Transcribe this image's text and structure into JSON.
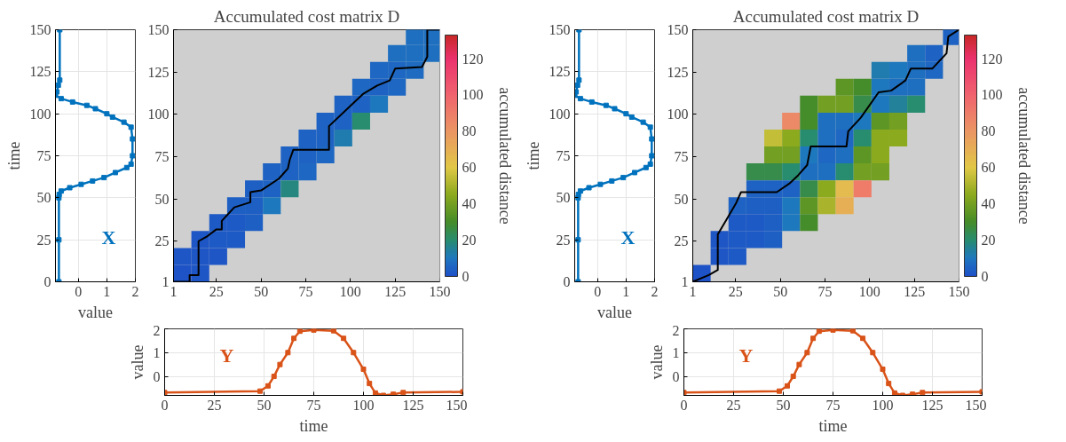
{
  "chart_data": [
    {
      "type": "line",
      "xlabel": "value",
      "ylabel": "time",
      "xlim": [
        -0.8,
        2
      ],
      "xticks": [
        0,
        1,
        2
      ],
      "ylim": [
        0,
        150
      ],
      "yticks": [
        0,
        25,
        50,
        75,
        100,
        125,
        150
      ],
      "grid": true,
      "marker": "square",
      "line_style": "solid",
      "series": [
        {
          "color": "#0072bd",
          "x": [
            -0.68,
            -0.68,
            -0.68,
            -0.67,
            -0.6,
            -0.3,
            0.1,
            0.5,
            0.9,
            1.3,
            1.7,
            1.85,
            1.9,
            1.9,
            1.85,
            1.6,
            1.2,
            1.0,
            0.6,
            0.3,
            -0.2,
            -0.6,
            -0.8,
            -0.75,
            -0.7,
            -0.65,
            -0.65
          ],
          "values": [
            0,
            25,
            50,
            52,
            54,
            56,
            58,
            60,
            62,
            65,
            68,
            70,
            75,
            85,
            92,
            95,
            98,
            100,
            103,
            105,
            107,
            109,
            111,
            113,
            117,
            120,
            150
          ]
        }
      ],
      "annotations": [
        "X"
      ]
    },
    {
      "type": "heatmap",
      "title": "Accumulated cost matrix D",
      "clabel": "accumulated distance",
      "clim": [
        0,
        133
      ],
      "cticks": [
        0,
        20,
        40,
        60,
        80,
        100,
        120
      ],
      "xlim": [
        1,
        150
      ],
      "xticks": [
        1,
        25,
        50,
        75,
        100,
        125,
        150
      ],
      "ylim": [
        1,
        150
      ],
      "yticks": [
        1,
        25,
        50,
        75,
        100,
        125,
        150
      ],
      "x": [
        6,
        16,
        26,
        36,
        46,
        56,
        66,
        76,
        86,
        96,
        106,
        116,
        126,
        136,
        146
      ],
      "y": [
        146,
        136,
        126,
        116,
        106,
        96,
        86,
        76,
        66,
        56,
        46,
        36,
        26,
        16,
        6
      ],
      "cells": [
        [
          null,
          null,
          null,
          null,
          null,
          null,
          null,
          null,
          null,
          null,
          null,
          null,
          null,
          8,
          8
        ],
        [
          null,
          null,
          null,
          null,
          null,
          null,
          null,
          null,
          null,
          null,
          null,
          null,
          8,
          8,
          8
        ],
        [
          null,
          null,
          null,
          null,
          null,
          null,
          null,
          null,
          null,
          null,
          null,
          6,
          6,
          7,
          null
        ],
        [
          null,
          null,
          null,
          null,
          null,
          null,
          null,
          null,
          null,
          null,
          6,
          5,
          6,
          null,
          null
        ],
        [
          null,
          null,
          null,
          null,
          null,
          null,
          null,
          null,
          null,
          5,
          5,
          10,
          null,
          null,
          null
        ],
        [
          null,
          null,
          null,
          null,
          null,
          null,
          null,
          null,
          5,
          5,
          20,
          null,
          null,
          null,
          null
        ],
        [
          null,
          null,
          null,
          null,
          null,
          null,
          null,
          5,
          5,
          12,
          null,
          null,
          null,
          null,
          null
        ],
        [
          null,
          null,
          null,
          null,
          null,
          null,
          5,
          5,
          6,
          null,
          null,
          null,
          null,
          null,
          null
        ],
        [
          null,
          null,
          null,
          null,
          null,
          5,
          5,
          6,
          null,
          null,
          null,
          null,
          null,
          null,
          null
        ],
        [
          null,
          null,
          null,
          null,
          4,
          5,
          18,
          null,
          null,
          null,
          null,
          null,
          null,
          null,
          null
        ],
        [
          null,
          null,
          null,
          4,
          4,
          10,
          null,
          null,
          null,
          null,
          null,
          null,
          null,
          null,
          null
        ],
        [
          null,
          null,
          3,
          3,
          4,
          null,
          null,
          null,
          null,
          null,
          null,
          null,
          null,
          null,
          null
        ],
        [
          null,
          2,
          3,
          3,
          null,
          null,
          null,
          null,
          null,
          null,
          null,
          null,
          null,
          null,
          null
        ],
        [
          2,
          2,
          2,
          null,
          null,
          null,
          null,
          null,
          null,
          null,
          null,
          null,
          null,
          null,
          null
        ],
        [
          1,
          2,
          null,
          null,
          null,
          null,
          null,
          null,
          null,
          null,
          null,
          null,
          null,
          null,
          null
        ]
      ],
      "series": [
        {
          "type": "line",
          "color": "#000000",
          "x": [
            1,
            10,
            10,
            15,
            15,
            20,
            25,
            28,
            28,
            35,
            44,
            44,
            50,
            60,
            65,
            66,
            68,
            88,
            88,
            100,
            107,
            115,
            122,
            125,
            140,
            143,
            143,
            150
          ],
          "values": [
            1,
            1,
            5,
            5,
            25,
            28,
            32,
            32,
            37,
            45,
            48,
            54,
            55,
            62,
            68,
            73,
            79,
            79,
            93,
            105,
            112,
            117,
            120,
            127,
            128,
            134,
            150,
            150
          ]
        }
      ]
    },
    {
      "type": "line",
      "xlabel": "time",
      "ylabel": "value",
      "xlim": [
        0,
        150
      ],
      "xticks": [
        0,
        25,
        50,
        75,
        100,
        125,
        150
      ],
      "ylim": [
        -0.8,
        2
      ],
      "yticks": [
        0,
        1,
        2
      ],
      "grid": true,
      "marker": "square",
      "line_style": "solid",
      "series": [
        {
          "color": "#d95319",
          "x": [
            0,
            48,
            52,
            55,
            58,
            62,
            65,
            68,
            75,
            85,
            90,
            95,
            100,
            103,
            106,
            110,
            115,
            120,
            150
          ],
          "values": [
            -0.68,
            -0.62,
            -0.4,
            0,
            0.5,
            1.0,
            1.6,
            1.9,
            1.95,
            1.92,
            1.6,
            1.0,
            0.3,
            -0.3,
            -0.7,
            -0.8,
            -0.75,
            -0.68,
            -0.65
          ]
        }
      ],
      "annotations": [
        "Y"
      ]
    },
    {
      "type": "line",
      "xlabel": "value",
      "ylabel": "time",
      "xlim": [
        -0.8,
        2
      ],
      "xticks": [
        0,
        1,
        2
      ],
      "ylim": [
        0,
        150
      ],
      "yticks": [
        0,
        25,
        50,
        75,
        100,
        125,
        150
      ],
      "grid": true,
      "marker": "square",
      "line_style": "solid",
      "series": [
        {
          "color": "#0072bd",
          "x": [
            -0.68,
            -0.68,
            -0.68,
            -0.67,
            -0.6,
            -0.3,
            0.1,
            0.5,
            0.9,
            1.3,
            1.7,
            1.85,
            1.9,
            1.9,
            1.85,
            1.6,
            1.2,
            1.0,
            0.6,
            0.3,
            -0.2,
            -0.6,
            -0.8,
            -0.75,
            -0.7,
            -0.65,
            -0.65
          ],
          "values": [
            0,
            25,
            50,
            52,
            54,
            56,
            58,
            60,
            62,
            65,
            68,
            70,
            75,
            85,
            92,
            95,
            98,
            100,
            103,
            105,
            107,
            109,
            111,
            113,
            117,
            120,
            150
          ]
        }
      ],
      "annotations": [
        "X"
      ]
    },
    {
      "type": "heatmap",
      "title": "Accumulated cost matrix D",
      "clabel": "accumulated distance",
      "clim": [
        0,
        133
      ],
      "cticks": [
        0,
        20,
        40,
        60,
        80,
        100,
        120
      ],
      "xlim": [
        1,
        150
      ],
      "xticks": [
        1,
        25,
        50,
        75,
        100,
        125,
        150
      ],
      "ylim": [
        1,
        150
      ],
      "yticks": [
        1,
        25,
        50,
        75,
        100,
        125,
        150
      ],
      "x": [
        6,
        16,
        26,
        36,
        46,
        56,
        66,
        76,
        86,
        96,
        106,
        116,
        126,
        136,
        146
      ],
      "y": [
        146,
        136,
        126,
        116,
        106,
        96,
        86,
        76,
        66,
        56,
        46,
        36,
        26,
        16,
        6
      ],
      "cells": [
        [
          null,
          null,
          null,
          null,
          null,
          null,
          null,
          null,
          null,
          null,
          null,
          null,
          null,
          null,
          5
        ],
        [
          null,
          null,
          null,
          null,
          null,
          null,
          null,
          null,
          null,
          null,
          null,
          null,
          8,
          5,
          null
        ],
        [
          null,
          null,
          null,
          null,
          null,
          null,
          null,
          null,
          null,
          null,
          12,
          10,
          8,
          6,
          null
        ],
        [
          null,
          null,
          null,
          null,
          null,
          null,
          null,
          null,
          35,
          30,
          10,
          8,
          8,
          null,
          null
        ],
        [
          null,
          null,
          null,
          null,
          null,
          null,
          30,
          40,
          40,
          25,
          10,
          15,
          20,
          null,
          null
        ],
        [
          null,
          null,
          null,
          null,
          null,
          85,
          30,
          8,
          8,
          10,
          35,
          40,
          null,
          null,
          null
        ],
        [
          null,
          null,
          null,
          null,
          55,
          45,
          20,
          8,
          6,
          20,
          45,
          45,
          null,
          null,
          null
        ],
        [
          null,
          null,
          null,
          null,
          40,
          40,
          10,
          6,
          8,
          35,
          45,
          null,
          null,
          null,
          null
        ],
        [
          null,
          null,
          null,
          25,
          25,
          20,
          8,
          8,
          20,
          40,
          40,
          null,
          null,
          null,
          null
        ],
        [
          null,
          null,
          null,
          5,
          5,
          5,
          25,
          45,
          65,
          90,
          null,
          null,
          null,
          null,
          null
        ],
        [
          null,
          null,
          5,
          4,
          4,
          10,
          35,
          50,
          70,
          null,
          null,
          null,
          null,
          null,
          null
        ],
        [
          null,
          null,
          3,
          3,
          4,
          10,
          30,
          null,
          null,
          null,
          null,
          null,
          null,
          null,
          null
        ],
        [
          null,
          2,
          3,
          3,
          4,
          null,
          null,
          null,
          null,
          null,
          null,
          null,
          null,
          null,
          null
        ],
        [
          null,
          2,
          3,
          null,
          null,
          null,
          null,
          null,
          null,
          null,
          null,
          null,
          null,
          null,
          null
        ],
        [
          1,
          null,
          null,
          null,
          null,
          null,
          null,
          null,
          null,
          null,
          null,
          null,
          null,
          null,
          null
        ]
      ],
      "series": [
        {
          "type": "line",
          "color": "#000000",
          "x": [
            1,
            10,
            15,
            15,
            20,
            25,
            28,
            48,
            55,
            60,
            65,
            67,
            87,
            88,
            95,
            105,
            112,
            120,
            123,
            135,
            143,
            144,
            150
          ],
          "values": [
            1,
            5,
            8,
            29,
            38,
            47,
            54,
            54,
            59,
            64,
            70,
            81,
            81,
            90,
            98,
            113,
            114,
            120,
            127,
            127,
            136,
            146,
            150
          ]
        }
      ]
    },
    {
      "type": "line",
      "xlabel": "time",
      "ylabel": "value",
      "xlim": [
        0,
        150
      ],
      "xticks": [
        0,
        25,
        50,
        75,
        100,
        125,
        150
      ],
      "ylim": [
        -0.8,
        2
      ],
      "yticks": [
        0,
        1,
        2
      ],
      "grid": true,
      "marker": "square",
      "line_style": "solid",
      "series": [
        {
          "color": "#d95319",
          "x": [
            0,
            48,
            52,
            55,
            58,
            62,
            65,
            68,
            75,
            85,
            90,
            95,
            100,
            103,
            106,
            110,
            115,
            120,
            150
          ],
          "values": [
            -0.68,
            -0.62,
            -0.4,
            0,
            0.5,
            1.0,
            1.6,
            1.9,
            1.95,
            1.92,
            1.6,
            1.0,
            0.3,
            -0.3,
            -0.7,
            -0.8,
            -0.75,
            -0.68,
            -0.65
          ]
        }
      ],
      "annotations": [
        "Y"
      ]
    }
  ]
}
